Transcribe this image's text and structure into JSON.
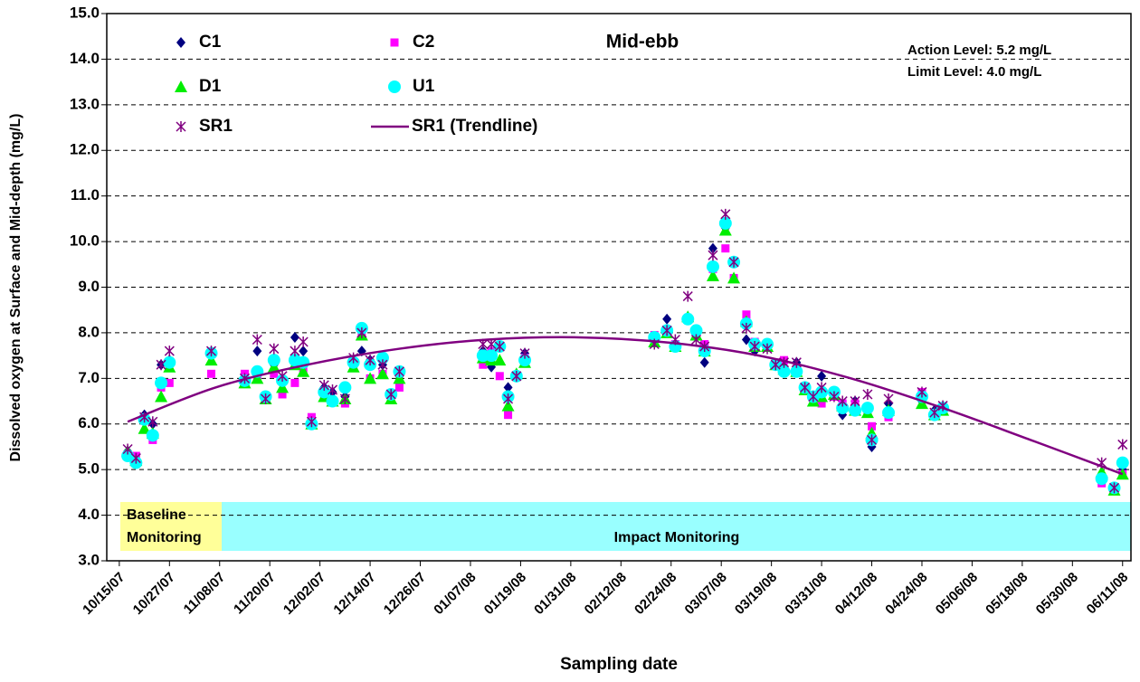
{
  "chart_data": {
    "type": "scatter",
    "title": "Mid-ebb",
    "x_label": "Sampling date",
    "y_label": "Dissolved oxygen at Surface and Mid-depth (mg/L)",
    "annotations": [
      "Action Level: 5.2 mg/L",
      "Limit Level: 4.0 mg/L",
      "Baseline",
      "Monitoring",
      "Impact Monitoring"
    ],
    "grid": true,
    "xlim": [
      "10/12/07",
      "06/13/08"
    ],
    "xticks": [
      "10/15/07",
      "10/27/07",
      "11/08/07",
      "11/20/07",
      "12/02/07",
      "12/14/07",
      "12/26/07",
      "01/07/08",
      "01/19/08",
      "01/31/08",
      "02/12/08",
      "02/24/08",
      "03/07/08",
      "03/19/08",
      "03/31/08",
      "04/12/08",
      "04/24/08",
      "05/06/08",
      "05/18/08",
      "05/30/08",
      "06/11/08"
    ],
    "ylim": [
      3,
      15
    ],
    "yticks": [
      {
        "value": 3,
        "label": "3.0"
      },
      {
        "value": 4,
        "label": "4.0"
      },
      {
        "value": 5,
        "label": "5.0"
      },
      {
        "value": 6,
        "label": "6.0"
      },
      {
        "value": 7,
        "label": "7.0"
      },
      {
        "value": 8,
        "label": "8.0"
      },
      {
        "value": 9,
        "label": "9.0"
      },
      {
        "value": 10,
        "label": "10.0"
      },
      {
        "value": 11,
        "label": "11.0"
      },
      {
        "value": 12,
        "label": "12.0"
      },
      {
        "value": 13,
        "label": "13.0"
      },
      {
        "value": 14,
        "label": "14.0"
      },
      {
        "value": 15,
        "label": "15.0"
      }
    ],
    "x": [
      "10/17/07",
      "10/19/07",
      "10/21/07",
      "10/23/07",
      "10/25/07",
      "10/27/07",
      "11/06/07",
      "11/14/07",
      "11/17/07",
      "11/19/07",
      "11/21/07",
      "11/23/07",
      "11/26/07",
      "11/28/07",
      "11/30/07",
      "12/03/07",
      "12/05/07",
      "12/08/07",
      "12/10/07",
      "12/12/07",
      "12/14/07",
      "12/17/07",
      "12/19/07",
      "12/21/07",
      "01/10/08",
      "01/12/08",
      "01/14/08",
      "01/16/08",
      "01/18/08",
      "01/20/08",
      "02/20/08",
      "02/23/08",
      "02/25/08",
      "02/28/08",
      "03/01/08",
      "03/03/08",
      "03/05/08",
      "03/08/08",
      "03/10/08",
      "03/13/08",
      "03/15/08",
      "03/18/08",
      "03/20/08",
      "03/22/08",
      "03/25/08",
      "03/27/08",
      "03/29/08",
      "03/31/08",
      "04/03/08",
      "04/05/08",
      "04/08/08",
      "04/11/08",
      "04/12/08",
      "04/16/08",
      "04/24/08",
      "04/27/08",
      "04/29/08",
      "06/06/08",
      "06/09/08",
      "06/11/08"
    ],
    "series": [
      {
        "name": "C1",
        "color": "#000080",
        "marker": "diamond",
        "values": [
          5.4,
          5.2,
          6.2,
          6.0,
          7.3,
          7.4,
          7.55,
          7.0,
          7.6,
          6.55,
          7.3,
          6.9,
          7.9,
          7.6,
          6.1,
          6.8,
          6.7,
          6.6,
          7.4,
          7.6,
          7.4,
          7.3,
          6.6,
          7.05,
          7.6,
          7.25,
          7.7,
          6.8,
          7.1,
          7.55,
          7.8,
          8.3,
          7.7,
          8.35,
          8.0,
          7.35,
          9.85,
          10.3,
          9.55,
          7.85,
          7.6,
          7.7,
          7.3,
          7.35,
          7.35,
          6.8,
          6.55,
          7.05,
          6.65,
          6.2,
          6.5,
          6.3,
          5.5,
          6.45,
          6.5,
          6.3,
          6.35,
          4.8,
          4.6,
          5.0
        ]
      },
      {
        "name": "C2",
        "color": "#ff00ff",
        "marker": "square",
        "values": [
          5.3,
          5.3,
          6.1,
          5.65,
          6.8,
          6.9,
          7.1,
          7.1,
          7.05,
          6.6,
          7.1,
          6.65,
          6.9,
          7.2,
          6.15,
          6.6,
          6.5,
          6.45,
          7.3,
          7.95,
          7.0,
          7.1,
          6.65,
          6.8,
          7.3,
          7.6,
          7.05,
          6.2,
          7.05,
          7.45,
          7.95,
          8.05,
          7.75,
          8.3,
          8.0,
          7.75,
          9.4,
          9.85,
          9.2,
          8.4,
          7.8,
          7.75,
          7.35,
          7.4,
          7.2,
          6.8,
          6.55,
          6.45,
          6.6,
          6.45,
          6.45,
          6.3,
          5.95,
          6.15,
          6.7,
          6.2,
          6.35,
          4.7,
          4.55,
          4.9
        ]
      },
      {
        "name": "D1",
        "color": "#00ee00",
        "marker": "triangle",
        "values": [
          5.4,
          5.2,
          5.9,
          5.8,
          6.6,
          7.25,
          7.4,
          6.9,
          7.0,
          6.55,
          7.25,
          6.8,
          7.3,
          7.15,
          6.0,
          6.6,
          6.5,
          6.55,
          7.25,
          7.95,
          7.0,
          7.1,
          6.55,
          7.0,
          7.45,
          7.4,
          7.4,
          6.4,
          7.1,
          7.35,
          7.8,
          8.0,
          7.7,
          8.35,
          7.95,
          7.6,
          9.25,
          10.25,
          9.2,
          8.25,
          7.7,
          7.7,
          7.3,
          7.2,
          7.15,
          6.75,
          6.5,
          6.6,
          6.65,
          6.4,
          6.3,
          6.25,
          5.8,
          6.3,
          6.45,
          6.2,
          6.3,
          4.95,
          4.55,
          4.9
        ]
      },
      {
        "name": "U1",
        "color": "#00ffff",
        "marker": "circle",
        "values": [
          5.3,
          5.15,
          6.1,
          5.75,
          6.9,
          7.35,
          7.55,
          6.95,
          7.15,
          6.6,
          7.4,
          6.95,
          7.4,
          7.35,
          6.0,
          6.7,
          6.5,
          6.8,
          7.35,
          8.1,
          7.3,
          7.45,
          6.65,
          7.15,
          7.5,
          7.5,
          7.7,
          6.6,
          7.05,
          7.4,
          7.9,
          8.05,
          7.7,
          8.3,
          8.05,
          7.6,
          9.45,
          10.4,
          9.55,
          8.2,
          7.75,
          7.75,
          7.3,
          7.15,
          7.15,
          6.8,
          6.6,
          6.7,
          6.7,
          6.35,
          6.3,
          6.35,
          5.65,
          6.25,
          6.6,
          6.2,
          6.35,
          4.8,
          4.6,
          5.15
        ]
      },
      {
        "name": "SR1",
        "color": "#800080",
        "marker": "asterisk",
        "values": [
          5.45,
          5.25,
          6.15,
          6.05,
          7.3,
          7.6,
          7.6,
          7.0,
          7.85,
          6.55,
          7.65,
          7.05,
          7.6,
          7.8,
          6.05,
          6.85,
          6.75,
          6.55,
          7.45,
          8.0,
          7.4,
          7.3,
          6.65,
          7.15,
          7.75,
          7.75,
          7.7,
          6.55,
          7.05,
          7.55,
          7.75,
          8.05,
          7.85,
          8.8,
          7.85,
          7.7,
          9.7,
          10.6,
          9.55,
          8.1,
          7.7,
          7.65,
          7.3,
          7.35,
          7.35,
          6.8,
          6.6,
          6.8,
          6.6,
          6.5,
          6.5,
          6.65,
          5.65,
          6.55,
          6.7,
          6.25,
          6.4,
          5.15,
          4.6,
          5.55
        ]
      }
    ],
    "trendline": {
      "name": "SR1 (Trendline)",
      "color": "#800080",
      "x": [
        "10/17/07",
        "11/07/07",
        "11/29/07",
        "12/21/07",
        "01/11/08",
        "02/02/08",
        "02/24/08",
        "03/16/08",
        "04/07/08",
        "04/29/08",
        "05/20/08",
        "06/11/08"
      ],
      "values": [
        6.05,
        6.8,
        7.3,
        7.65,
        7.85,
        7.9,
        7.78,
        7.5,
        7.0,
        6.35,
        5.65,
        4.9
      ]
    }
  }
}
